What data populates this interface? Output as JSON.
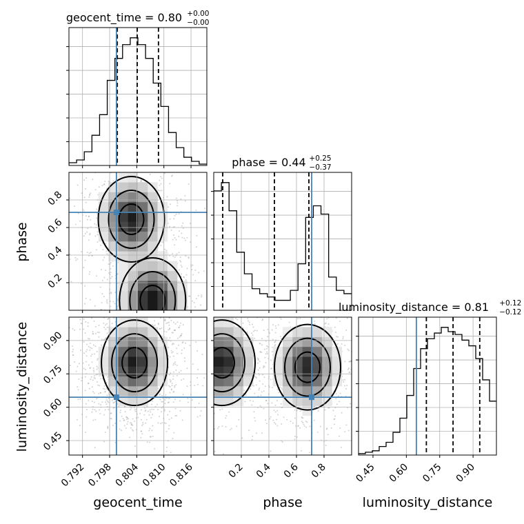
{
  "chart_data": {
    "type": "corner",
    "parameters": [
      {
        "key": "geocent_time",
        "label": "geocent_time",
        "range": [
          0.789,
          0.8195
        ],
        "ticks": [
          0.792,
          0.798,
          0.804,
          0.81,
          0.816
        ],
        "tick_labels": [
          "0.792",
          "0.798",
          "0.804",
          "0.810",
          "0.816"
        ],
        "truth": 0.7995,
        "title": {
          "text": "geocent_time = 0.80",
          "upper": "+0.00",
          "lower": "−0.00"
        },
        "quantiles": [
          0.7997,
          0.8041,
          0.8088
        ]
      },
      {
        "key": "phase",
        "label": "phase",
        "range": [
          0.0,
          1.0
        ],
        "ticks": [
          0.2,
          0.4,
          0.6,
          0.8
        ],
        "tick_labels": [
          "0.2",
          "0.4",
          "0.6",
          "0.8"
        ],
        "truth": 0.71,
        "title": {
          "text": "phase = 0.44",
          "upper": "+0.25",
          "lower": "−0.37"
        },
        "quantiles": [
          0.065,
          0.44,
          0.69
        ]
      },
      {
        "key": "luminosity_distance",
        "label": "luminosity_distance",
        "range": [
          0.385,
          1.005
        ],
        "ticks": [
          0.45,
          0.6,
          0.75,
          0.9
        ],
        "tick_labels": [
          "0.45",
          "0.60",
          "0.75",
          "0.90"
        ],
        "truth": 0.645,
        "title": {
          "text": "luminosity_distance = 0.81",
          "upper": "+0.12",
          "lower": "−0.12"
        },
        "quantiles": [
          0.69,
          0.81,
          0.93
        ]
      }
    ],
    "histograms": [
      {
        "param": "geocent_time",
        "values": [
          2,
          4,
          10,
          22,
          37,
          62,
          78,
          88,
          93,
          88,
          78,
          60,
          43,
          24,
          13,
          6,
          3,
          1
        ]
      },
      {
        "param": "phase",
        "values": [
          72,
          77,
          60,
          35,
          22,
          13,
          10,
          8,
          6,
          6,
          12,
          28,
          56,
          63,
          58,
          20,
          12,
          10
        ]
      },
      {
        "param": "luminosity_distance",
        "values": [
          1,
          2,
          3,
          6,
          9,
          16,
          26,
          42,
          61,
          75,
          82,
          86,
          90,
          87,
          85,
          81,
          77,
          68,
          53,
          38
        ]
      }
    ],
    "density_2d": [
      {
        "x": "geocent_time",
        "y": "phase",
        "modes": [
          {
            "x": 0.8028,
            "y": 0.66,
            "weight": 1.0
          },
          {
            "x": 0.8075,
            "y": 0.07,
            "weight": 1.1
          }
        ]
      },
      {
        "x": "geocent_time",
        "y": "luminosity_distance",
        "modes": [
          {
            "x": 0.8035,
            "y": 0.8,
            "weight": 1.0
          }
        ]
      },
      {
        "x": "phase",
        "y": "luminosity_distance",
        "modes": [
          {
            "x": 0.06,
            "y": 0.8,
            "weight": 1.0
          },
          {
            "x": 0.68,
            "y": 0.78,
            "weight": 0.95
          }
        ]
      }
    ]
  }
}
